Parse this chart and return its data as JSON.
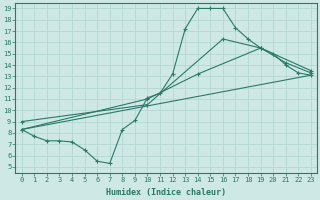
{
  "xlabel": "Humidex (Indice chaleur)",
  "xlim": [
    -0.5,
    23.5
  ],
  "ylim": [
    4.5,
    19.5
  ],
  "xticks": [
    0,
    1,
    2,
    3,
    4,
    5,
    6,
    7,
    8,
    9,
    10,
    11,
    12,
    13,
    14,
    15,
    16,
    17,
    18,
    19,
    20,
    21,
    22,
    23
  ],
  "yticks": [
    5,
    6,
    7,
    8,
    9,
    10,
    11,
    12,
    13,
    14,
    15,
    16,
    17,
    18,
    19
  ],
  "bg_color": "#cde8e5",
  "line_color": "#2a7a68",
  "grid_color": "#b0d5d0",
  "curve1_x": [
    0,
    1,
    2,
    3,
    4,
    5,
    6,
    7,
    8,
    9,
    10,
    11,
    12,
    13,
    14,
    15,
    16,
    17,
    18,
    19,
    20,
    21,
    22,
    23
  ],
  "curve1_y": [
    8.3,
    7.7,
    7.3,
    7.3,
    7.2,
    6.5,
    5.5,
    5.3,
    8.3,
    9.1,
    11.1,
    11.5,
    13.2,
    17.2,
    19.0,
    19.0,
    19.0,
    17.3,
    16.3,
    15.5,
    15.0,
    14.0,
    13.3,
    13.1
  ],
  "curve2_x": [
    0,
    10,
    14,
    19,
    21,
    23
  ],
  "curve2_y": [
    8.3,
    11.0,
    13.2,
    15.5,
    14.2,
    13.3
  ],
  "curve3_x": [
    0,
    10,
    16,
    19,
    23
  ],
  "curve3_y": [
    9.0,
    10.5,
    16.3,
    15.5,
    13.5
  ],
  "line4_x": [
    0,
    23
  ],
  "line4_y": [
    8.3,
    13.1
  ],
  "linewidth": 0.8,
  "marker_size": 2.5
}
